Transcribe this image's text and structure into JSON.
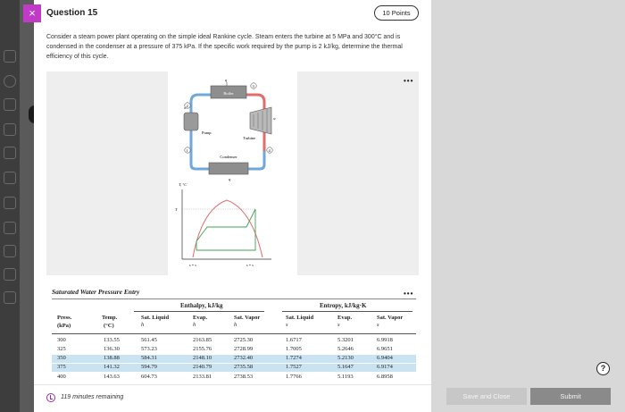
{
  "question": {
    "title": "Question 15",
    "points": "10 Points",
    "text": "Consider a steam power plant operating on the simple ideal Rankine cycle. Steam enters the turbine at 5 MPa and 300°C and is condensed in the condenser at a pressure of 375 kPa. If the specific work required by the pump is 2 kJ/kg, determine the thermal efficiency of this cycle."
  },
  "figure": {
    "boiler": "Boiler",
    "pump": "Pump",
    "turbine": "Turbine",
    "condenser": "Condenser",
    "q_in": "q",
    "q_out": "q",
    "w_pump": "w",
    "w_turb": "w",
    "t_axis": "T, °C",
    "t3": "T",
    "s12": "s = s",
    "s34": "s = s",
    "states": [
      "1",
      "2",
      "3",
      "4"
    ]
  },
  "table": {
    "caption": "Saturated Water Pressure Entry",
    "enthalpy_group": "Enthalpy, kJ/kg",
    "entropy_group": "Entropy, kJ/kg·K",
    "headers": {
      "press": "Press.",
      "press_unit": "(kPa)",
      "temp": "Temp.",
      "temp_unit": "(°C)",
      "sat_liquid_h": "Sat. Liquid",
      "hf": "h",
      "evap_h": "Evap.",
      "hfg": "h",
      "sat_vapor_h": "Sat. Vapor",
      "hg": "h",
      "sat_liquid_s": "Sat. Liquid",
      "sf": "s",
      "evap_s": "Evap.",
      "sfg": "s",
      "sat_vapor_s": "Sat. Vapor",
      "sg": "s"
    },
    "rows": [
      [
        "300",
        "133.55",
        "561.45",
        "2163.85",
        "2725.30",
        "1.6717",
        "5.3201",
        "6.9918"
      ],
      [
        "325",
        "136.30",
        "573.23",
        "2155.76",
        "2728.99",
        "1.7005",
        "5.2646",
        "6.9651"
      ],
      [
        "350",
        "138.88",
        "584.31",
        "2148.10",
        "2732.40",
        "1.7274",
        "5.2130",
        "6.9404"
      ],
      [
        "375",
        "141.32",
        "594.79",
        "2140.79",
        "2735.58",
        "1.7527",
        "5.1647",
        "6.9174"
      ],
      [
        "400",
        "143.63",
        "604.73",
        "2133.81",
        "2738.53",
        "1.7766",
        "5.1193",
        "6.8958"
      ]
    ]
  },
  "footer": {
    "timer": "119 minutes remaining",
    "save_close": "Save and Close",
    "submit": "Submit"
  },
  "icons": {
    "close": "×",
    "help": "?",
    "more": "•••"
  },
  "colors": {
    "accent": "#c13bc8",
    "highlight_row": "#c9e3f3"
  }
}
